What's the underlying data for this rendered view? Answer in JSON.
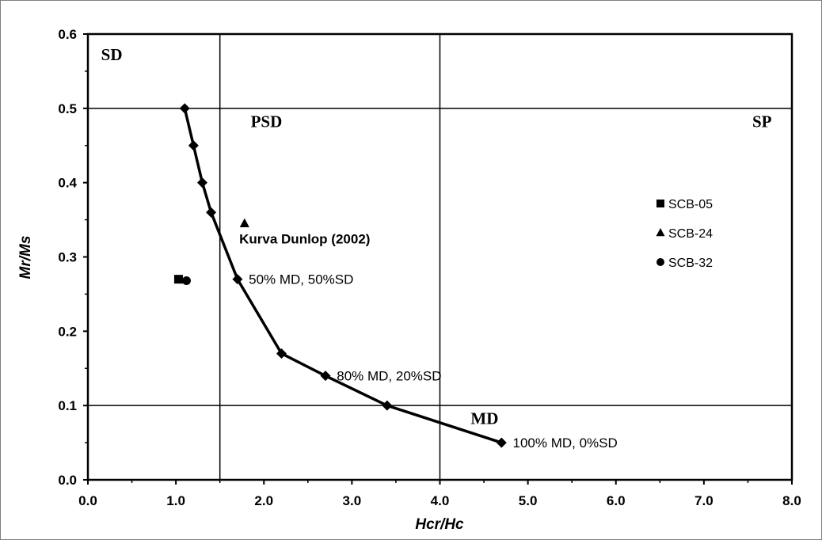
{
  "chart_data": {
    "type": "scatter",
    "xlabel": "Hcr/Hc",
    "ylabel": "Mr/Ms",
    "xlim": [
      0,
      8
    ],
    "ylim": [
      0,
      0.6
    ],
    "x_ticks": [
      "0.0",
      "1.0",
      "2.0",
      "3.0",
      "4.0",
      "5.0",
      "6.0",
      "7.0",
      "8.0"
    ],
    "y_ticks": [
      "0.0",
      "0.1",
      "0.2",
      "0.3",
      "0.4",
      "0.5",
      "0.6"
    ],
    "grid": false,
    "legend_position": "right",
    "region_lines": {
      "vertical_x": [
        1.5,
        4.0
      ],
      "horizontal_y": [
        0.5,
        0.1
      ]
    },
    "region_labels": [
      {
        "text": "SD",
        "x": 0.15,
        "y": 0.565
      },
      {
        "text": "PSD",
        "x": 1.85,
        "y": 0.475
      },
      {
        "text": "SP",
        "x": 7.55,
        "y": 0.475
      },
      {
        "text": "MD",
        "x": 4.35,
        "y": 0.075
      }
    ],
    "curve": {
      "name": "Kurva Dunlop (2002)",
      "points": [
        [
          1.1,
          0.5
        ],
        [
          1.2,
          0.45
        ],
        [
          1.3,
          0.4
        ],
        [
          1.4,
          0.36
        ],
        [
          1.7,
          0.27
        ],
        [
          2.2,
          0.17
        ],
        [
          2.7,
          0.14
        ],
        [
          3.4,
          0.1
        ],
        [
          4.7,
          0.05
        ]
      ]
    },
    "annotations": [
      {
        "text": "50% MD, 50%SD",
        "x": 1.72,
        "y": 0.27
      },
      {
        "text": "80% MD, 20%SD",
        "x": 2.72,
        "y": 0.14
      },
      {
        "text": "100% MD, 0%SD",
        "x": 4.72,
        "y": 0.05
      }
    ],
    "series": [
      {
        "name": "SCB-05",
        "marker": "square",
        "x": 1.03,
        "y": 0.27
      },
      {
        "name": "SCB-24",
        "marker": "triangle",
        "x": 1.78,
        "y": 0.345
      },
      {
        "name": "SCB-32",
        "marker": "circle",
        "x": 1.12,
        "y": 0.268
      }
    ]
  }
}
